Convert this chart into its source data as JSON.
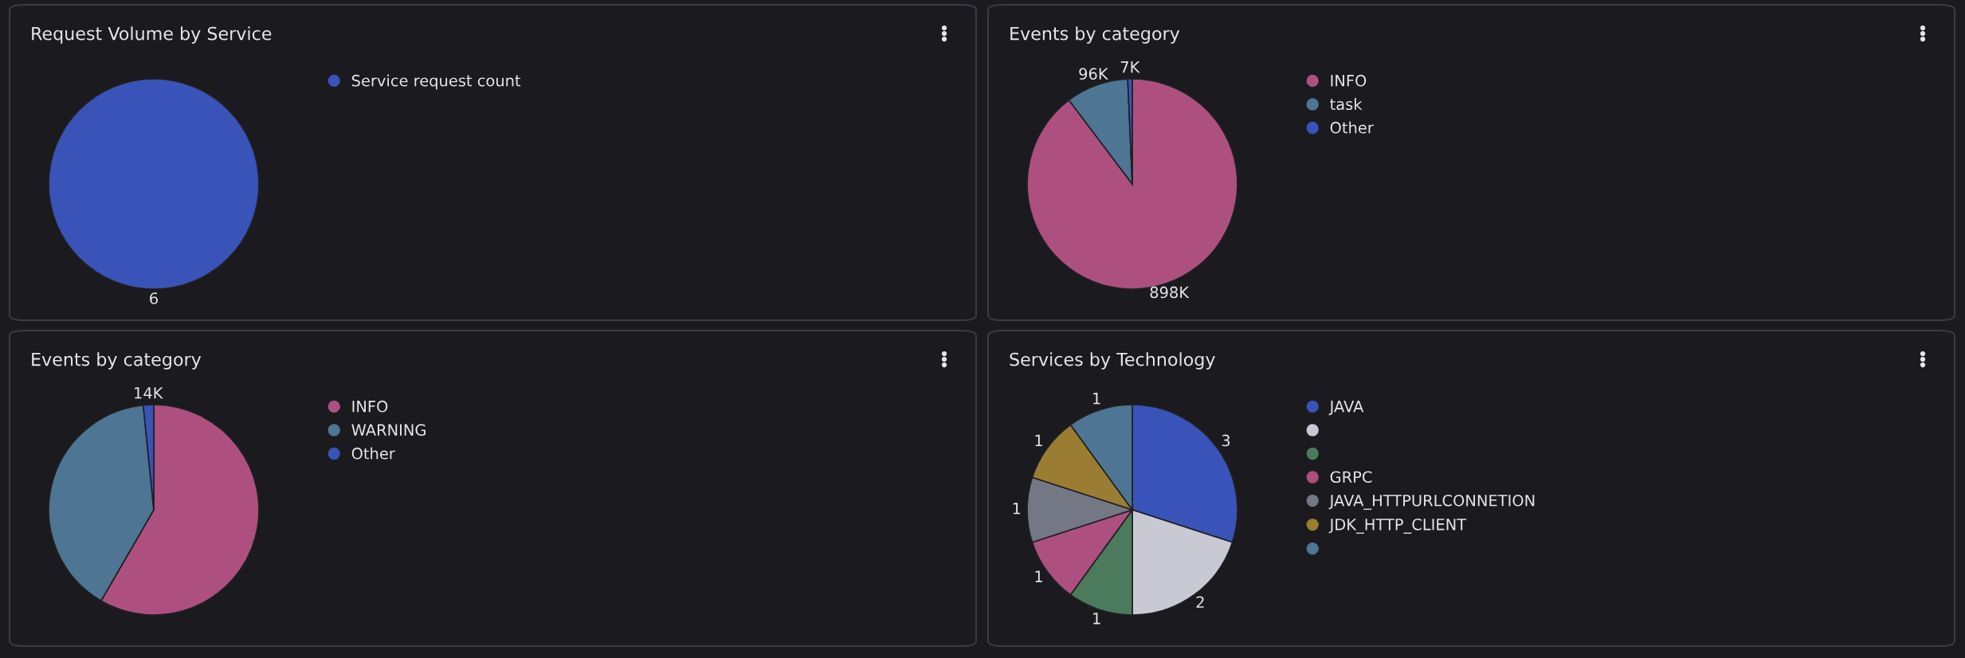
{
  "chart_data": [
    {
      "type": "pie",
      "title": "Request Volume by Service",
      "categories": [
        "Service request count"
      ],
      "values": [
        6
      ],
      "colors": [
        "#3a53b8"
      ],
      "data_labels": true,
      "legend": "right"
    },
    {
      "type": "pie",
      "title": "Events by category",
      "categories": [
        "INFO",
        "task",
        "Other"
      ],
      "values": [
        898000,
        96000,
        7000
      ],
      "value_labels": [
        "898K",
        "96K",
        "7K"
      ],
      "colors": [
        "#ad5080",
        "#4e7594",
        "#3a53b8"
      ],
      "legend": "right"
    },
    {
      "type": "pie",
      "title": "Events by category",
      "categories": [
        "INFO",
        "WARNING",
        "Other"
      ],
      "values": [
        510000,
        350000,
        14000
      ],
      "value_labels": [
        null,
        null,
        "14K"
      ],
      "colors": [
        "#ad5080",
        "#4e7594",
        "#3a53b8"
      ],
      "legend": "right"
    },
    {
      "type": "pie",
      "title": "Services by Technology",
      "categories": [
        "JAVA",
        null,
        null,
        "GRPC",
        "JAVA_HTTPURLCONNETION",
        "JDK_HTTP_CLIENT",
        null
      ],
      "values": [
        3,
        2,
        1,
        1,
        1,
        1,
        1
      ],
      "colors": [
        "#3a53b8",
        "#c8c9d3",
        "#4b7a5c",
        "#ad5080",
        "#747784",
        "#9a7d32",
        "#4e7594"
      ],
      "data_labels": true,
      "legend": "right"
    }
  ]
}
